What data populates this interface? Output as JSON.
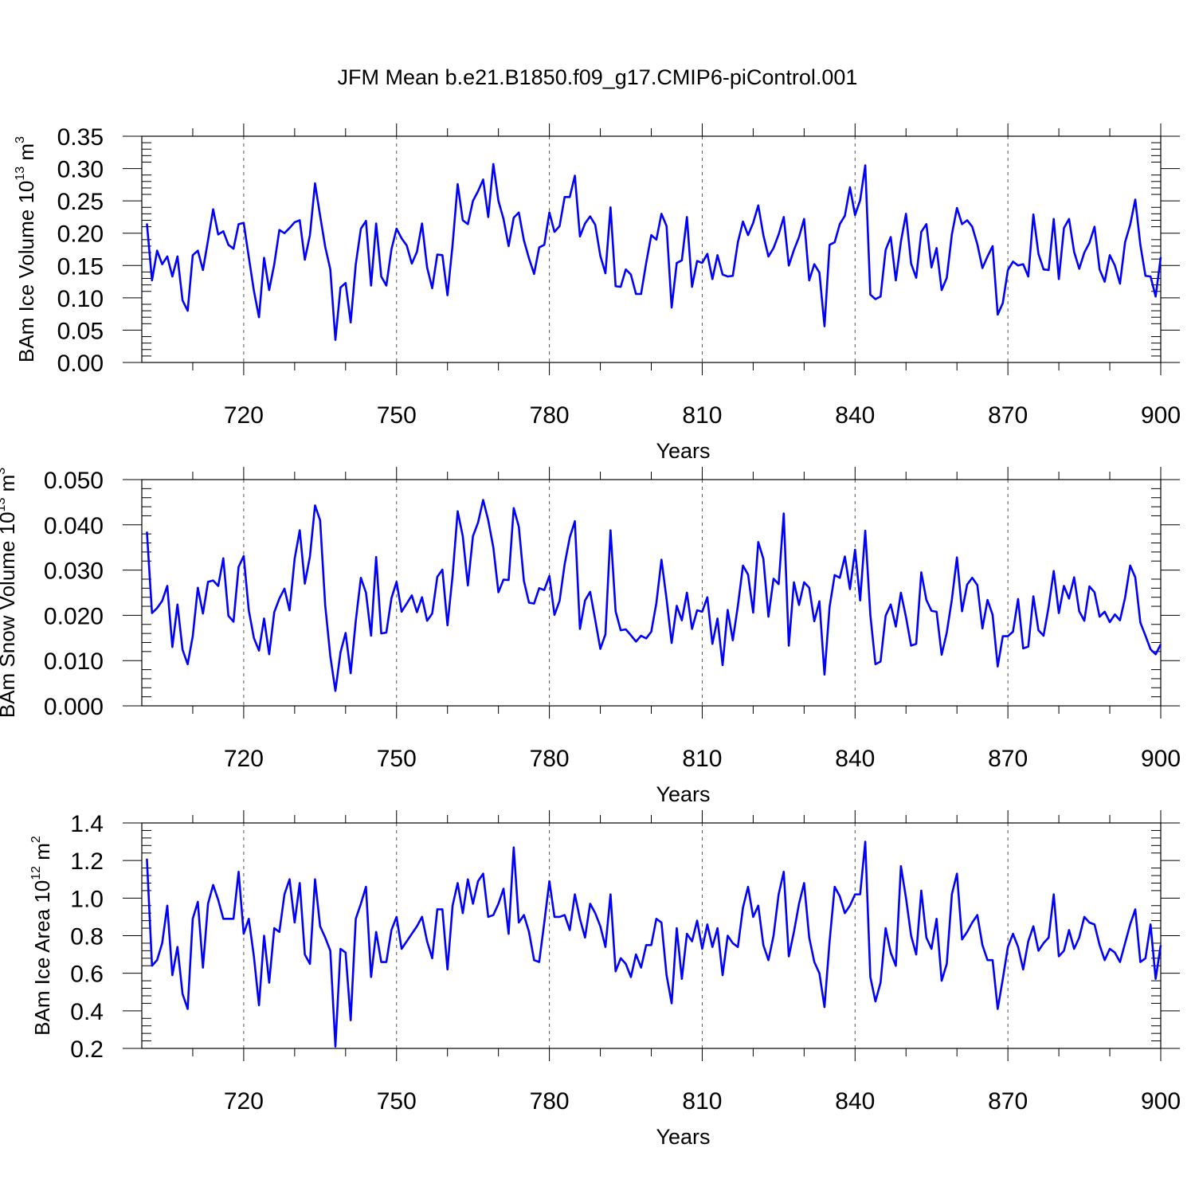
{
  "title": "JFM Mean b.e21.B1850.f09_g17.CMIP6-piControl.001",
  "line_color": "#0000ff",
  "chart_data": [
    {
      "type": "line",
      "title": "",
      "xlabel": "Years",
      "ylabel_base": "BAm Ice Volume 10",
      "ylabel_exp": "13",
      "ylabel_unit": " m",
      "ylabel_unit_exp": "3",
      "xlim": [
        700,
        900
      ],
      "ylim": [
        0.0,
        0.35
      ],
      "xticks": [
        720,
        750,
        780,
        810,
        840,
        870,
        900
      ],
      "yticks": [
        0.0,
        0.05,
        0.1,
        0.15,
        0.2,
        0.25,
        0.3,
        0.35
      ],
      "ytick_labels": [
        "0.00",
        "0.05",
        "0.10",
        "0.15",
        "0.20",
        "0.25",
        "0.30",
        "0.35"
      ],
      "x_start": 701,
      "values": [
        0.215,
        0.127,
        0.173,
        0.152,
        0.164,
        0.133,
        0.164,
        0.096,
        0.08,
        0.166,
        0.173,
        0.143,
        0.189,
        0.237,
        0.198,
        0.203,
        0.182,
        0.176,
        0.214,
        0.216,
        0.163,
        0.111,
        0.07,
        0.162,
        0.112,
        0.152,
        0.205,
        0.2,
        0.208,
        0.217,
        0.22,
        0.159,
        0.197,
        0.277,
        0.227,
        0.179,
        0.144,
        0.035,
        0.116,
        0.123,
        0.062,
        0.152,
        0.207,
        0.219,
        0.119,
        0.215,
        0.133,
        0.119,
        0.175,
        0.207,
        0.192,
        0.181,
        0.153,
        0.171,
        0.215,
        0.147,
        0.115,
        0.167,
        0.166,
        0.104,
        0.182,
        0.276,
        0.22,
        0.214,
        0.25,
        0.265,
        0.283,
        0.225,
        0.307,
        0.25,
        0.222,
        0.18,
        0.224,
        0.232,
        0.189,
        0.161,
        0.137,
        0.178,
        0.182,
        0.232,
        0.202,
        0.211,
        0.256,
        0.256,
        0.289,
        0.195,
        0.215,
        0.226,
        0.213,
        0.165,
        0.138,
        0.24,
        0.118,
        0.117,
        0.144,
        0.136,
        0.106,
        0.106,
        0.154,
        0.197,
        0.19,
        0.23,
        0.211,
        0.085,
        0.154,
        0.158,
        0.225,
        0.117,
        0.157,
        0.154,
        0.168,
        0.129,
        0.166,
        0.136,
        0.133,
        0.134,
        0.186,
        0.218,
        0.197,
        0.216,
        0.243,
        0.197,
        0.164,
        0.177,
        0.198,
        0.225,
        0.15,
        0.174,
        0.194,
        0.222,
        0.127,
        0.152,
        0.139,
        0.056,
        0.182,
        0.186,
        0.214,
        0.227,
        0.271,
        0.228,
        0.251,
        0.305,
        0.105,
        0.098,
        0.102,
        0.174,
        0.194,
        0.127,
        0.187,
        0.23,
        0.153,
        0.131,
        0.202,
        0.214,
        0.147,
        0.177,
        0.112,
        0.131,
        0.198,
        0.239,
        0.214,
        0.22,
        0.21,
        0.183,
        0.146,
        0.164,
        0.18,
        0.074,
        0.092,
        0.143,
        0.156,
        0.15,
        0.152,
        0.133,
        0.229,
        0.168,
        0.144,
        0.143,
        0.222,
        0.129,
        0.208,
        0.222,
        0.171,
        0.145,
        0.17,
        0.185,
        0.21,
        0.144,
        0.125,
        0.166,
        0.15,
        0.122,
        0.186,
        0.213,
        0.252,
        0.182,
        0.134,
        0.133,
        0.102,
        0.163
      ]
    },
    {
      "type": "line",
      "title": "",
      "xlabel": "Years",
      "ylabel_base": "BAm Snow Volume 10",
      "ylabel_exp": "13",
      "ylabel_unit": " m",
      "ylabel_unit_exp": "3",
      "xlim": [
        700,
        900
      ],
      "ylim": [
        0.0,
        0.05
      ],
      "xticks": [
        720,
        750,
        780,
        810,
        840,
        870,
        900
      ],
      "yticks": [
        0.0,
        0.01,
        0.02,
        0.03,
        0.04,
        0.05
      ],
      "ytick_labels": [
        "0.000",
        "0.010",
        "0.020",
        "0.030",
        "0.040",
        "0.050"
      ],
      "x_start": 701,
      "values": [
        0.0385,
        0.0205,
        0.0216,
        0.0232,
        0.0265,
        0.013,
        0.0224,
        0.0124,
        0.0092,
        0.0154,
        0.0261,
        0.0204,
        0.0274,
        0.0277,
        0.0265,
        0.0326,
        0.0199,
        0.0186,
        0.0307,
        0.0331,
        0.0211,
        0.015,
        0.0122,
        0.0193,
        0.0114,
        0.0207,
        0.0237,
        0.0259,
        0.0211,
        0.0325,
        0.0388,
        0.027,
        0.033,
        0.0443,
        0.041,
        0.0222,
        0.011,
        0.0033,
        0.0118,
        0.0161,
        0.0072,
        0.0188,
        0.0283,
        0.025,
        0.0155,
        0.0329,
        0.016,
        0.0162,
        0.0238,
        0.0274,
        0.0208,
        0.0226,
        0.0244,
        0.0207,
        0.024,
        0.0188,
        0.0204,
        0.0285,
        0.0301,
        0.0178,
        0.0288,
        0.043,
        0.0375,
        0.0266,
        0.0375,
        0.0405,
        0.0455,
        0.041,
        0.035,
        0.0251,
        0.0279,
        0.0278,
        0.0437,
        0.0396,
        0.0276,
        0.0228,
        0.0226,
        0.026,
        0.0256,
        0.0287,
        0.0201,
        0.0232,
        0.0313,
        0.0372,
        0.0408,
        0.017,
        0.0233,
        0.0252,
        0.019,
        0.0126,
        0.0158,
        0.0388,
        0.0209,
        0.0167,
        0.0169,
        0.0156,
        0.0142,
        0.0155,
        0.0149,
        0.0164,
        0.0227,
        0.0323,
        0.0236,
        0.0139,
        0.0221,
        0.0189,
        0.025,
        0.017,
        0.0211,
        0.0208,
        0.024,
        0.0137,
        0.0193,
        0.009,
        0.0212,
        0.0145,
        0.0221,
        0.031,
        0.029,
        0.0206,
        0.0362,
        0.0325,
        0.0197,
        0.0281,
        0.0269,
        0.0425,
        0.0133,
        0.0273,
        0.0223,
        0.0273,
        0.0261,
        0.0187,
        0.0231,
        0.0069,
        0.0219,
        0.0289,
        0.0283,
        0.033,
        0.0258,
        0.0345,
        0.0233,
        0.0387,
        0.0201,
        0.0092,
        0.0098,
        0.0199,
        0.0224,
        0.0175,
        0.025,
        0.0196,
        0.0133,
        0.0137,
        0.0295,
        0.0234,
        0.021,
        0.0208,
        0.0113,
        0.0162,
        0.0235,
        0.0328,
        0.0209,
        0.0268,
        0.0283,
        0.0267,
        0.0171,
        0.0234,
        0.0201,
        0.0087,
        0.0154,
        0.0154,
        0.0164,
        0.0236,
        0.0127,
        0.0131,
        0.0242,
        0.0167,
        0.0155,
        0.0219,
        0.0298,
        0.0205,
        0.0265,
        0.0237,
        0.0284,
        0.0209,
        0.0188,
        0.0264,
        0.0251,
        0.0197,
        0.0208,
        0.0185,
        0.0202,
        0.0189,
        0.0239,
        0.031,
        0.0284,
        0.0184,
        0.0155,
        0.0125,
        0.0114,
        0.0136
      ]
    },
    {
      "type": "line",
      "title": "",
      "xlabel": "Years",
      "ylabel_base": "BAm Ice Area 10",
      "ylabel_exp": "12",
      "ylabel_unit": " m",
      "ylabel_unit_exp": "2",
      "xlim": [
        700,
        900
      ],
      "ylim": [
        0.2,
        1.4
      ],
      "xticks": [
        720,
        750,
        780,
        810,
        840,
        870,
        900
      ],
      "yticks": [
        0.2,
        0.4,
        0.6,
        0.8,
        1.0,
        1.2,
        1.4
      ],
      "ytick_labels": [
        "0.2",
        "0.4",
        "0.6",
        "0.8",
        "1.0",
        "1.2",
        "1.4"
      ],
      "x_start": 701,
      "values": [
        1.21,
        0.64,
        0.67,
        0.76,
        0.96,
        0.59,
        0.74,
        0.49,
        0.41,
        0.89,
        0.98,
        0.63,
        0.97,
        1.07,
        0.99,
        0.89,
        0.89,
        0.89,
        1.14,
        0.81,
        0.89,
        0.69,
        0.43,
        0.8,
        0.55,
        0.84,
        0.82,
        1.02,
        1.1,
        0.87,
        1.08,
        0.7,
        0.65,
        1.1,
        0.85,
        0.79,
        0.72,
        0.21,
        0.73,
        0.71,
        0.35,
        0.89,
        0.97,
        1.06,
        0.58,
        0.82,
        0.66,
        0.66,
        0.83,
        0.9,
        0.73,
        0.77,
        0.81,
        0.85,
        0.9,
        0.77,
        0.68,
        0.94,
        0.94,
        0.62,
        0.96,
        1.08,
        0.92,
        1.1,
        0.97,
        1.09,
        1.13,
        0.9,
        0.91,
        0.97,
        1.05,
        0.81,
        1.27,
        0.87,
        0.91,
        0.82,
        0.67,
        0.66,
        0.87,
        1.09,
        0.9,
        0.9,
        0.91,
        0.83,
        1.02,
        0.89,
        0.79,
        0.97,
        0.92,
        0.85,
        0.74,
        1.02,
        0.61,
        0.68,
        0.65,
        0.58,
        0.7,
        0.63,
        0.75,
        0.75,
        0.89,
        0.87,
        0.59,
        0.44,
        0.84,
        0.57,
        0.81,
        0.77,
        0.88,
        0.73,
        0.86,
        0.74,
        0.84,
        0.59,
        0.8,
        0.76,
        0.74,
        0.95,
        1.06,
        0.9,
        0.96,
        0.75,
        0.67,
        0.8,
        1.02,
        1.14,
        0.69,
        0.82,
        0.97,
        1.08,
        0.79,
        0.66,
        0.6,
        0.42,
        0.77,
        1.06,
        1.01,
        0.92,
        0.96,
        1.02,
        1.02,
        1.3,
        0.58,
        0.45,
        0.55,
        0.84,
        0.71,
        0.64,
        1.17,
        1.0,
        0.8,
        0.7,
        1.04,
        0.79,
        0.73,
        0.89,
        0.56,
        0.65,
        1.02,
        1.13,
        0.78,
        0.82,
        0.87,
        0.91,
        0.75,
        0.67,
        0.67,
        0.41,
        0.57,
        0.74,
        0.81,
        0.74,
        0.62,
        0.77,
        0.85,
        0.72,
        0.76,
        0.79,
        1.02,
        0.69,
        0.72,
        0.83,
        0.73,
        0.79,
        0.9,
        0.87,
        0.86,
        0.75,
        0.67,
        0.73,
        0.71,
        0.66,
        0.76,
        0.86,
        0.94,
        0.66,
        0.68,
        0.86,
        0.57,
        0.75
      ]
    }
  ]
}
